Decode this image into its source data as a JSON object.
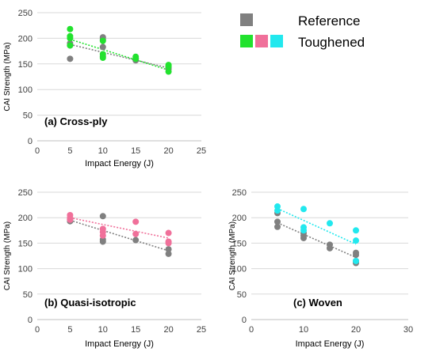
{
  "legend": {
    "swatch_colors": {
      "reference": "#808080",
      "green": "#22e22e",
      "pink": "#f0709a",
      "cyan": "#22e8ee"
    },
    "reference_label": "Reference",
    "toughened_label": "Toughened"
  },
  "chart_data": [
    {
      "type": "scatter",
      "annotation": "(a) Cross-ply",
      "xlabel": "Impact Energy (J)",
      "ylabel": "CAI Strength (MPa)",
      "xlim": [
        0,
        25
      ],
      "ylim": [
        0,
        250
      ],
      "xticks": [
        0,
        5,
        10,
        15,
        20,
        25
      ],
      "yticks": [
        0,
        50,
        100,
        150,
        200,
        250
      ],
      "grid": "horizontal",
      "series": [
        {
          "color": "#808080",
          "points": [
            [
              5,
              160
            ],
            [
              5,
              186
            ],
            [
              5,
              190
            ],
            [
              10,
              202
            ],
            [
              10,
              198
            ],
            [
              10,
              183
            ],
            [
              10,
              165
            ],
            [
              15,
              157
            ],
            [
              15,
              160
            ],
            [
              20,
              140
            ],
            [
              20,
              143
            ]
          ],
          "trend": [
            [
              5,
              188
            ],
            [
              20,
              142
            ]
          ]
        },
        {
          "color": "#22e22e",
          "points": [
            [
              5,
              218
            ],
            [
              5,
              204
            ],
            [
              5,
              200
            ],
            [
              5,
              186
            ],
            [
              10,
              195
            ],
            [
              10,
              169
            ],
            [
              10,
              162
            ],
            [
              15,
              164
            ],
            [
              15,
              160
            ],
            [
              20,
              148
            ],
            [
              20,
              145
            ],
            [
              20,
              135
            ]
          ],
          "trend": [
            [
              5,
              198
            ],
            [
              20,
              138
            ]
          ]
        }
      ]
    },
    {
      "type": "scatter",
      "annotation": "(b) Quasi-isotropic",
      "xlabel": "Impact Energy (J)",
      "ylabel": "CAI Strength (MPa)",
      "xlim": [
        0,
        25
      ],
      "ylim": [
        0,
        250
      ],
      "xticks": [
        0,
        5,
        10,
        15,
        20,
        25
      ],
      "yticks": [
        0,
        50,
        100,
        150,
        200,
        250
      ],
      "grid": "horizontal",
      "series": [
        {
          "color": "#808080",
          "points": [
            [
              5,
              193
            ],
            [
              5,
              197
            ],
            [
              10,
              203
            ],
            [
              10,
              157
            ],
            [
              10,
              153
            ],
            [
              15,
              156
            ],
            [
              20,
              138
            ],
            [
              20,
              129
            ]
          ],
          "trend": [
            [
              5,
              195
            ],
            [
              20,
              135
            ]
          ]
        },
        {
          "color": "#f0709a",
          "points": [
            [
              5,
              205
            ],
            [
              5,
              200
            ],
            [
              5,
              196
            ],
            [
              10,
              178
            ],
            [
              10,
              172
            ],
            [
              10,
              165
            ],
            [
              15,
              192
            ],
            [
              15,
              168
            ],
            [
              20,
              170
            ],
            [
              20,
              153
            ],
            [
              20,
              150
            ]
          ],
          "trend": [
            [
              5,
              200
            ],
            [
              20,
              160
            ]
          ]
        }
      ]
    },
    {
      "type": "scatter",
      "annotation": "(c) Woven",
      "xlabel": "Impact Energy (J)",
      "ylabel": "CAI Strength (MPa)",
      "xlim": [
        0,
        30
      ],
      "ylim": [
        0,
        250
      ],
      "xticks": [
        0,
        10,
        20,
        30
      ],
      "yticks": [
        0,
        50,
        100,
        150,
        200,
        250
      ],
      "grid": "horizontal",
      "series": [
        {
          "color": "#808080",
          "points": [
            [
              5,
              209
            ],
            [
              5,
              192
            ],
            [
              5,
              182
            ],
            [
              10,
              170
            ],
            [
              10,
              165
            ],
            [
              10,
              160
            ],
            [
              15,
              147
            ],
            [
              15,
              140
            ],
            [
              20,
              131
            ],
            [
              20,
              127
            ],
            [
              20,
              115
            ],
            [
              20,
              111
            ]
          ],
          "trend": [
            [
              5,
              190
            ],
            [
              20,
              122
            ]
          ]
        },
        {
          "color": "#22e8ee",
          "points": [
            [
              5,
              222
            ],
            [
              5,
              214
            ],
            [
              10,
              217
            ],
            [
              10,
              181
            ],
            [
              10,
              175
            ],
            [
              15,
              189
            ],
            [
              20,
              175
            ],
            [
              20,
              155
            ],
            [
              20,
              115
            ]
          ],
          "trend": [
            [
              5,
              218
            ],
            [
              20,
              148
            ]
          ]
        }
      ]
    }
  ]
}
